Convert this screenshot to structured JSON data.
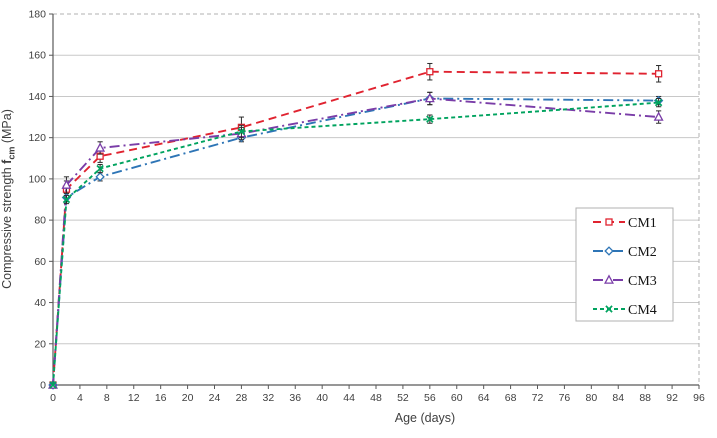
{
  "chart_data": {
    "type": "line",
    "title": "",
    "xlabel": "Age (days)",
    "ylabel": {
      "prefix": "Compressive strength ",
      "symbol": "f",
      "subscript": "cm",
      "suffix": " (MPa)"
    },
    "xlim": [
      0,
      96
    ],
    "ylim": [
      0,
      180
    ],
    "xticks": [
      0,
      4,
      8,
      12,
      16,
      20,
      24,
      28,
      32,
      36,
      40,
      44,
      48,
      52,
      56,
      60,
      64,
      68,
      72,
      76,
      80,
      84,
      88,
      92,
      96
    ],
    "yticks": [
      0,
      20,
      40,
      60,
      80,
      100,
      120,
      140,
      160,
      180
    ],
    "x": [
      0,
      2,
      7,
      28,
      56,
      90
    ],
    "series": [
      {
        "name": "CM1",
        "color": "#e02330",
        "dash": "dashed",
        "marker": "square",
        "values": [
          0,
          95,
          111,
          125,
          152,
          151
        ],
        "errors": [
          0,
          4,
          3,
          5,
          4,
          4
        ]
      },
      {
        "name": "CM2",
        "color": "#2e75b6",
        "dash": "dashdot",
        "marker": "diamond",
        "values": [
          0,
          91,
          101,
          120,
          139,
          138
        ],
        "errors": [
          0,
          2,
          2,
          2,
          3,
          2
        ]
      },
      {
        "name": "CM3",
        "color": "#7a3da8",
        "dash": "dashdot",
        "marker": "triangle",
        "values": [
          0,
          97,
          115,
          122,
          139,
          130
        ],
        "errors": [
          0,
          4,
          3,
          3,
          3,
          3
        ]
      },
      {
        "name": "CM4",
        "color": "#00a35f",
        "dash": "shortdash",
        "marker": "x",
        "values": [
          0,
          90,
          105,
          123,
          129,
          137
        ],
        "errors": [
          0,
          2,
          2,
          3,
          2,
          2
        ]
      }
    ],
    "legend": {
      "position": "middle-right",
      "labels": [
        "CM1",
        "CM2",
        "CM3",
        "CM4"
      ]
    },
    "grid": {
      "horizontal": true,
      "gridline_color": "#c8c8c8",
      "dashed_border_color": "#b0b0b0"
    },
    "axis_color": "#595959",
    "error_bar_color": "#2b2b2b"
  }
}
